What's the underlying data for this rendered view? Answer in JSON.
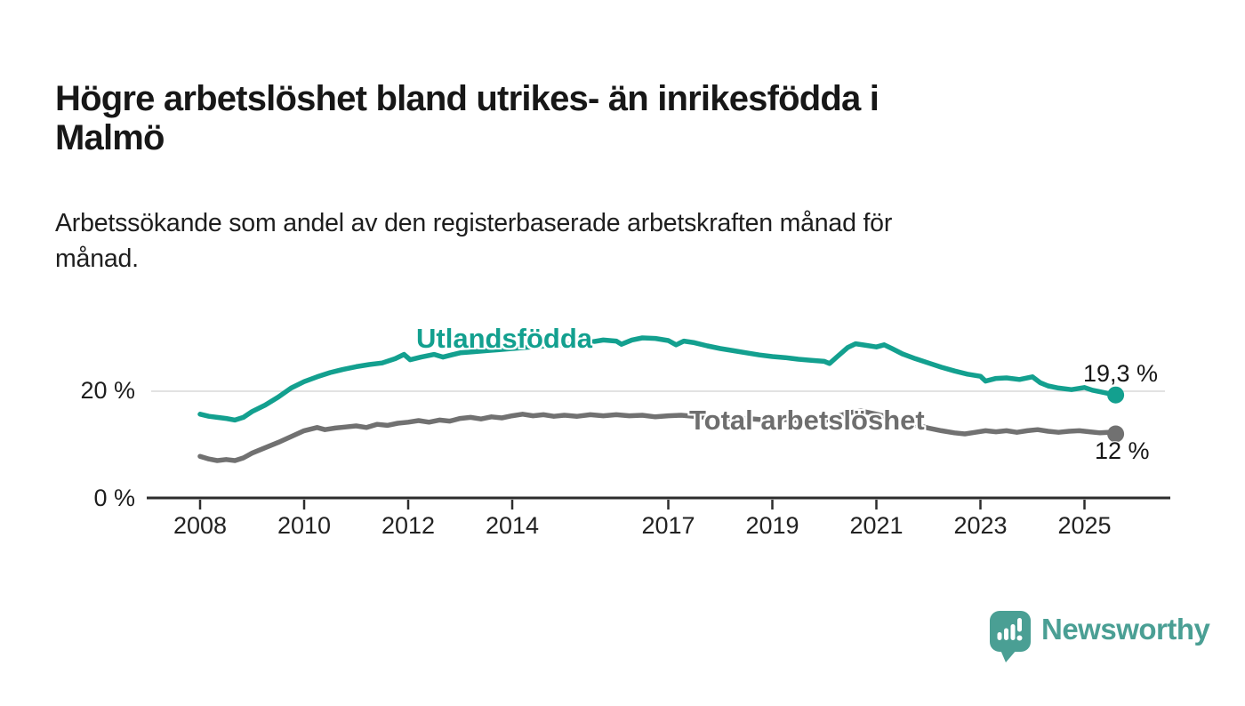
{
  "title": {
    "line1": "Högre arbetslöshet bland utrikes- än inrikesfödda i",
    "line2": "Malmö"
  },
  "subtitle": {
    "line1": "Arbetssökande som andel av den registerbaserade arbetskraften månad för",
    "line2": "månad."
  },
  "chart_data": {
    "type": "line",
    "title": "Högre arbetslöshet bland utrikes- än inrikesfödda i Malmö",
    "subtitle": "Arbetssökande som andel av den registerbaserade arbetskraften månad för månad.",
    "x_axis": {
      "ticks": [
        2008,
        2010,
        2012,
        2014,
        2017,
        2019,
        2021,
        2023,
        2025
      ],
      "range": [
        2007.0,
        2026.7
      ],
      "color": "#2d2d2d"
    },
    "y_axis": {
      "ticks": [
        {
          "value": 0,
          "label": "0 %"
        },
        {
          "value": 20,
          "label": "20 %"
        }
      ],
      "range": [
        0,
        33
      ],
      "gridline_at": 20,
      "gridline_color": "#d8d8d8"
    },
    "legend_position": "inline-labels",
    "series": [
      {
        "name": "Utlandsfödda",
        "color": "#13a08f",
        "end_label": "19,3 %",
        "end_value": 19.3,
        "points": [
          [
            2008.0,
            15.7
          ],
          [
            2008.17,
            15.3
          ],
          [
            2008.33,
            15.1
          ],
          [
            2008.5,
            14.9
          ],
          [
            2008.67,
            14.6
          ],
          [
            2008.83,
            15.1
          ],
          [
            2009.0,
            16.2
          ],
          [
            2009.25,
            17.4
          ],
          [
            2009.5,
            18.9
          ],
          [
            2009.75,
            20.6
          ],
          [
            2010.0,
            21.8
          ],
          [
            2010.25,
            22.7
          ],
          [
            2010.5,
            23.5
          ],
          [
            2010.75,
            24.1
          ],
          [
            2011.0,
            24.6
          ],
          [
            2011.25,
            25.0
          ],
          [
            2011.5,
            25.3
          ],
          [
            2011.75,
            26.1
          ],
          [
            2011.92,
            26.9
          ],
          [
            2012.04,
            25.9
          ],
          [
            2012.25,
            26.4
          ],
          [
            2012.5,
            26.9
          ],
          [
            2012.67,
            26.4
          ],
          [
            2012.83,
            26.8
          ],
          [
            2013.0,
            27.2
          ],
          [
            2013.25,
            27.4
          ],
          [
            2013.5,
            27.6
          ],
          [
            2013.75,
            27.8
          ],
          [
            2014.0,
            28.0
          ],
          [
            2014.25,
            28.2
          ],
          [
            2014.5,
            28.4
          ],
          [
            2014.75,
            28.6
          ],
          [
            2015.0,
            28.7
          ],
          [
            2015.25,
            28.9
          ],
          [
            2015.5,
            29.2
          ],
          [
            2015.75,
            29.6
          ],
          [
            2016.0,
            29.4
          ],
          [
            2016.1,
            28.8
          ],
          [
            2016.3,
            29.6
          ],
          [
            2016.5,
            30.0
          ],
          [
            2016.75,
            29.9
          ],
          [
            2017.0,
            29.5
          ],
          [
            2017.15,
            28.7
          ],
          [
            2017.3,
            29.4
          ],
          [
            2017.5,
            29.1
          ],
          [
            2017.75,
            28.5
          ],
          [
            2018.0,
            28.0
          ],
          [
            2018.25,
            27.6
          ],
          [
            2018.5,
            27.2
          ],
          [
            2018.75,
            26.8
          ],
          [
            2019.0,
            26.5
          ],
          [
            2019.25,
            26.3
          ],
          [
            2019.5,
            26.0
          ],
          [
            2019.75,
            25.8
          ],
          [
            2020.0,
            25.6
          ],
          [
            2020.1,
            25.2
          ],
          [
            2020.25,
            26.5
          ],
          [
            2020.45,
            28.2
          ],
          [
            2020.6,
            28.9
          ],
          [
            2020.8,
            28.6
          ],
          [
            2021.0,
            28.3
          ],
          [
            2021.15,
            28.7
          ],
          [
            2021.3,
            28.0
          ],
          [
            2021.5,
            27.0
          ],
          [
            2021.75,
            26.1
          ],
          [
            2022.0,
            25.3
          ],
          [
            2022.25,
            24.5
          ],
          [
            2022.5,
            23.8
          ],
          [
            2022.75,
            23.2
          ],
          [
            2023.0,
            22.8
          ],
          [
            2023.1,
            21.9
          ],
          [
            2023.3,
            22.4
          ],
          [
            2023.5,
            22.5
          ],
          [
            2023.75,
            22.2
          ],
          [
            2024.0,
            22.7
          ],
          [
            2024.15,
            21.6
          ],
          [
            2024.3,
            21.0
          ],
          [
            2024.5,
            20.6
          ],
          [
            2024.75,
            20.3
          ],
          [
            2025.0,
            20.7
          ],
          [
            2025.15,
            20.2
          ],
          [
            2025.3,
            19.9
          ],
          [
            2025.45,
            19.6
          ],
          [
            2025.6,
            19.3
          ]
        ]
      },
      {
        "name": "Total arbetslöshet",
        "color": "#717171",
        "end_label": "12 %",
        "end_value": 12.0,
        "points": [
          [
            2008.0,
            7.8
          ],
          [
            2008.17,
            7.3
          ],
          [
            2008.33,
            7.0
          ],
          [
            2008.5,
            7.2
          ],
          [
            2008.67,
            7.0
          ],
          [
            2008.83,
            7.5
          ],
          [
            2009.0,
            8.4
          ],
          [
            2009.25,
            9.4
          ],
          [
            2009.5,
            10.4
          ],
          [
            2009.75,
            11.5
          ],
          [
            2010.0,
            12.6
          ],
          [
            2010.25,
            13.2
          ],
          [
            2010.4,
            12.8
          ],
          [
            2010.6,
            13.1
          ],
          [
            2010.8,
            13.3
          ],
          [
            2011.0,
            13.5
          ],
          [
            2011.2,
            13.2
          ],
          [
            2011.4,
            13.8
          ],
          [
            2011.6,
            13.6
          ],
          [
            2011.8,
            14.0
          ],
          [
            2012.0,
            14.2
          ],
          [
            2012.2,
            14.5
          ],
          [
            2012.4,
            14.2
          ],
          [
            2012.6,
            14.6
          ],
          [
            2012.8,
            14.4
          ],
          [
            2013.0,
            14.9
          ],
          [
            2013.2,
            15.1
          ],
          [
            2013.4,
            14.8
          ],
          [
            2013.6,
            15.2
          ],
          [
            2013.8,
            15.0
          ],
          [
            2014.0,
            15.4
          ],
          [
            2014.2,
            15.7
          ],
          [
            2014.4,
            15.4
          ],
          [
            2014.6,
            15.6
          ],
          [
            2014.8,
            15.3
          ],
          [
            2015.0,
            15.5
          ],
          [
            2015.25,
            15.3
          ],
          [
            2015.5,
            15.6
          ],
          [
            2015.75,
            15.4
          ],
          [
            2016.0,
            15.6
          ],
          [
            2016.25,
            15.4
          ],
          [
            2016.5,
            15.5
          ],
          [
            2016.75,
            15.2
          ],
          [
            2017.0,
            15.4
          ],
          [
            2017.25,
            15.5
          ],
          [
            2017.5,
            15.3
          ],
          [
            2017.75,
            15.1
          ],
          [
            2018.0,
            15.0
          ],
          [
            2018.25,
            14.8
          ],
          [
            2018.5,
            14.9
          ],
          [
            2018.75,
            14.7
          ],
          [
            2019.0,
            14.6
          ],
          [
            2019.25,
            14.7
          ],
          [
            2019.5,
            14.5
          ],
          [
            2019.75,
            14.6
          ],
          [
            2020.0,
            14.4
          ],
          [
            2020.25,
            15.3
          ],
          [
            2020.5,
            16.0
          ],
          [
            2020.7,
            16.3
          ],
          [
            2021.0,
            15.7
          ],
          [
            2021.25,
            15.1
          ],
          [
            2021.5,
            14.4
          ],
          [
            2021.75,
            13.7
          ],
          [
            2022.0,
            13.1
          ],
          [
            2022.25,
            12.6
          ],
          [
            2022.5,
            12.2
          ],
          [
            2022.7,
            12.0
          ],
          [
            2022.9,
            12.3
          ],
          [
            2023.1,
            12.6
          ],
          [
            2023.3,
            12.4
          ],
          [
            2023.5,
            12.6
          ],
          [
            2023.7,
            12.3
          ],
          [
            2023.9,
            12.6
          ],
          [
            2024.1,
            12.8
          ],
          [
            2024.3,
            12.5
          ],
          [
            2024.5,
            12.3
          ],
          [
            2024.7,
            12.5
          ],
          [
            2024.9,
            12.6
          ],
          [
            2025.1,
            12.4
          ],
          [
            2025.3,
            12.2
          ],
          [
            2025.45,
            12.3
          ],
          [
            2025.6,
            12.0
          ]
        ]
      }
    ]
  },
  "branding": {
    "wordmark": "Newsworthy",
    "logo_color": "#4a9f94"
  }
}
